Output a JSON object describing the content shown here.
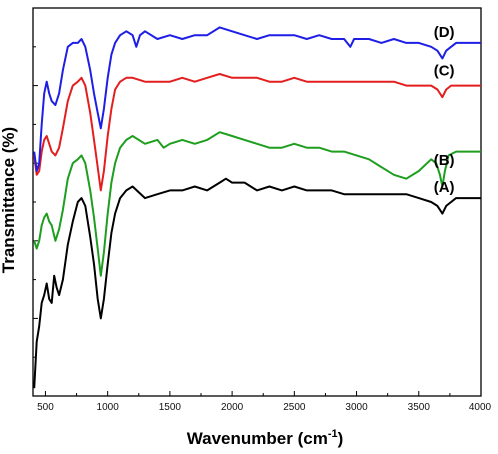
{
  "chart_data": {
    "type": "line",
    "title": "",
    "xlabel": "Wavenumber (cm",
    "xlabel_sup": "-1",
    "xlabel_tail": ")",
    "ylabel": "Transmittance (%)",
    "xlim": [
      400,
      4000
    ],
    "ylim": [
      0,
      100
    ],
    "xticks": [
      500,
      1000,
      1500,
      2000,
      2500,
      3000,
      3500,
      4000
    ],
    "xtick_labels": [
      "500",
      "1000",
      "1500",
      "2000",
      "2500",
      "3000",
      "3500",
      "4000"
    ],
    "y_tick_labels_shown": false,
    "grid": false,
    "legend": "none",
    "series": [
      {
        "name": "(A)",
        "color": "#000000",
        "points": [
          [
            410,
            2
          ],
          [
            430,
            14
          ],
          [
            450,
            18
          ],
          [
            470,
            24
          ],
          [
            490,
            26
          ],
          [
            510,
            29
          ],
          [
            530,
            25
          ],
          [
            550,
            24
          ],
          [
            570,
            31
          ],
          [
            590,
            28
          ],
          [
            610,
            26
          ],
          [
            640,
            30
          ],
          [
            680,
            39
          ],
          [
            720,
            45
          ],
          [
            760,
            50
          ],
          [
            790,
            51
          ],
          [
            820,
            49
          ],
          [
            860,
            41
          ],
          [
            890,
            34
          ],
          [
            920,
            25
          ],
          [
            945,
            20
          ],
          [
            970,
            25
          ],
          [
            1000,
            34
          ],
          [
            1030,
            42
          ],
          [
            1060,
            47
          ],
          [
            1100,
            51
          ],
          [
            1150,
            53
          ],
          [
            1200,
            54
          ],
          [
            1300,
            51
          ],
          [
            1400,
            52
          ],
          [
            1500,
            53
          ],
          [
            1600,
            53
          ],
          [
            1700,
            54
          ],
          [
            1800,
            53
          ],
          [
            1900,
            55
          ],
          [
            1950,
            56
          ],
          [
            2000,
            55
          ],
          [
            2100,
            55
          ],
          [
            2200,
            53
          ],
          [
            2300,
            54
          ],
          [
            2400,
            53
          ],
          [
            2500,
            54
          ],
          [
            2600,
            53
          ],
          [
            2700,
            53
          ],
          [
            2800,
            53
          ],
          [
            2900,
            52
          ],
          [
            3000,
            52
          ],
          [
            3100,
            52
          ],
          [
            3200,
            52
          ],
          [
            3300,
            52
          ],
          [
            3400,
            52
          ],
          [
            3500,
            51
          ],
          [
            3600,
            50
          ],
          [
            3650,
            49
          ],
          [
            3690,
            47
          ],
          [
            3720,
            49
          ],
          [
            3760,
            50
          ],
          [
            3800,
            51
          ],
          [
            3900,
            51
          ],
          [
            4000,
            51
          ]
        ]
      },
      {
        "name": "(B)",
        "color": "#1e9e1e",
        "points": [
          [
            410,
            40
          ],
          [
            430,
            38
          ],
          [
            450,
            40
          ],
          [
            470,
            44
          ],
          [
            490,
            46
          ],
          [
            510,
            47
          ],
          [
            530,
            45
          ],
          [
            550,
            44
          ],
          [
            580,
            40
          ],
          [
            610,
            43
          ],
          [
            640,
            48
          ],
          [
            680,
            56
          ],
          [
            720,
            60
          ],
          [
            760,
            61
          ],
          [
            790,
            62
          ],
          [
            820,
            60
          ],
          [
            860,
            53
          ],
          [
            890,
            46
          ],
          [
            920,
            38
          ],
          [
            945,
            31
          ],
          [
            970,
            37
          ],
          [
            1000,
            47
          ],
          [
            1030,
            55
          ],
          [
            1060,
            60
          ],
          [
            1100,
            64
          ],
          [
            1150,
            66
          ],
          [
            1200,
            67
          ],
          [
            1300,
            65
          ],
          [
            1400,
            66
          ],
          [
            1450,
            64
          ],
          [
            1500,
            65
          ],
          [
            1600,
            66
          ],
          [
            1700,
            65
          ],
          [
            1800,
            66
          ],
          [
            1900,
            68
          ],
          [
            2000,
            67
          ],
          [
            2100,
            66
          ],
          [
            2200,
            65
          ],
          [
            2300,
            64
          ],
          [
            2400,
            64
          ],
          [
            2500,
            65
          ],
          [
            2600,
            64
          ],
          [
            2700,
            64
          ],
          [
            2800,
            63
          ],
          [
            2900,
            63
          ],
          [
            3000,
            62
          ],
          [
            3100,
            61
          ],
          [
            3200,
            59
          ],
          [
            3300,
            57
          ],
          [
            3400,
            56
          ],
          [
            3500,
            58
          ],
          [
            3600,
            61
          ],
          [
            3640,
            60
          ],
          [
            3670,
            57
          ],
          [
            3690,
            54
          ],
          [
            3710,
            58
          ],
          [
            3740,
            62
          ],
          [
            3800,
            63
          ],
          [
            3900,
            63
          ],
          [
            4000,
            63
          ]
        ]
      },
      {
        "name": "(C)",
        "color": "#e41e1e",
        "points": [
          [
            410,
            62
          ],
          [
            430,
            57
          ],
          [
            450,
            58
          ],
          [
            470,
            63
          ],
          [
            490,
            66
          ],
          [
            510,
            67
          ],
          [
            530,
            65
          ],
          [
            550,
            63
          ],
          [
            580,
            62
          ],
          [
            610,
            64
          ],
          [
            640,
            69
          ],
          [
            680,
            76
          ],
          [
            720,
            80
          ],
          [
            760,
            81
          ],
          [
            790,
            82
          ],
          [
            820,
            80
          ],
          [
            860,
            73
          ],
          [
            890,
            66
          ],
          [
            920,
            59
          ],
          [
            945,
            53
          ],
          [
            970,
            58
          ],
          [
            1000,
            67
          ],
          [
            1030,
            74
          ],
          [
            1060,
            79
          ],
          [
            1100,
            81
          ],
          [
            1150,
            82
          ],
          [
            1200,
            82
          ],
          [
            1300,
            81
          ],
          [
            1400,
            81
          ],
          [
            1500,
            81
          ],
          [
            1600,
            82
          ],
          [
            1700,
            81
          ],
          [
            1800,
            82
          ],
          [
            1900,
            83
          ],
          [
            2000,
            82
          ],
          [
            2100,
            82
          ],
          [
            2200,
            82
          ],
          [
            2300,
            81
          ],
          [
            2400,
            81
          ],
          [
            2500,
            82
          ],
          [
            2600,
            81
          ],
          [
            2700,
            81
          ],
          [
            2800,
            81
          ],
          [
            2900,
            81
          ],
          [
            3000,
            81
          ],
          [
            3100,
            81
          ],
          [
            3200,
            81
          ],
          [
            3300,
            81
          ],
          [
            3400,
            80
          ],
          [
            3500,
            80
          ],
          [
            3600,
            80
          ],
          [
            3650,
            79
          ],
          [
            3690,
            77
          ],
          [
            3720,
            79
          ],
          [
            3760,
            80
          ],
          [
            3800,
            80
          ],
          [
            3900,
            80
          ],
          [
            4000,
            80
          ]
        ]
      },
      {
        "name": "(D)",
        "color": "#1e1ee6",
        "points": [
          [
            410,
            63
          ],
          [
            430,
            58
          ],
          [
            450,
            60
          ],
          [
            470,
            70
          ],
          [
            490,
            78
          ],
          [
            510,
            81
          ],
          [
            530,
            78
          ],
          [
            550,
            76
          ],
          [
            580,
            75
          ],
          [
            610,
            78
          ],
          [
            640,
            84
          ],
          [
            680,
            90
          ],
          [
            720,
            91
          ],
          [
            760,
            91
          ],
          [
            790,
            92
          ],
          [
            820,
            90
          ],
          [
            860,
            84
          ],
          [
            890,
            78
          ],
          [
            920,
            73
          ],
          [
            945,
            69
          ],
          [
            970,
            74
          ],
          [
            1000,
            82
          ],
          [
            1030,
            88
          ],
          [
            1060,
            91
          ],
          [
            1100,
            93
          ],
          [
            1150,
            94
          ],
          [
            1200,
            93
          ],
          [
            1230,
            90
          ],
          [
            1260,
            93
          ],
          [
            1300,
            94
          ],
          [
            1400,
            92
          ],
          [
            1500,
            93
          ],
          [
            1600,
            92
          ],
          [
            1700,
            93
          ],
          [
            1800,
            93
          ],
          [
            1900,
            95
          ],
          [
            2000,
            94
          ],
          [
            2100,
            93
          ],
          [
            2200,
            92
          ],
          [
            2300,
            93
          ],
          [
            2400,
            93
          ],
          [
            2500,
            93
          ],
          [
            2600,
            92
          ],
          [
            2700,
            93
          ],
          [
            2800,
            92
          ],
          [
            2900,
            92
          ],
          [
            2950,
            90
          ],
          [
            2980,
            92
          ],
          [
            3000,
            92
          ],
          [
            3100,
            92
          ],
          [
            3200,
            91
          ],
          [
            3300,
            92
          ],
          [
            3400,
            91
          ],
          [
            3500,
            91
          ],
          [
            3600,
            90
          ],
          [
            3650,
            89
          ],
          [
            3690,
            87
          ],
          [
            3720,
            89
          ],
          [
            3760,
            90
          ],
          [
            3800,
            91
          ],
          [
            3900,
            91
          ],
          [
            4000,
            91
          ]
        ]
      }
    ]
  }
}
